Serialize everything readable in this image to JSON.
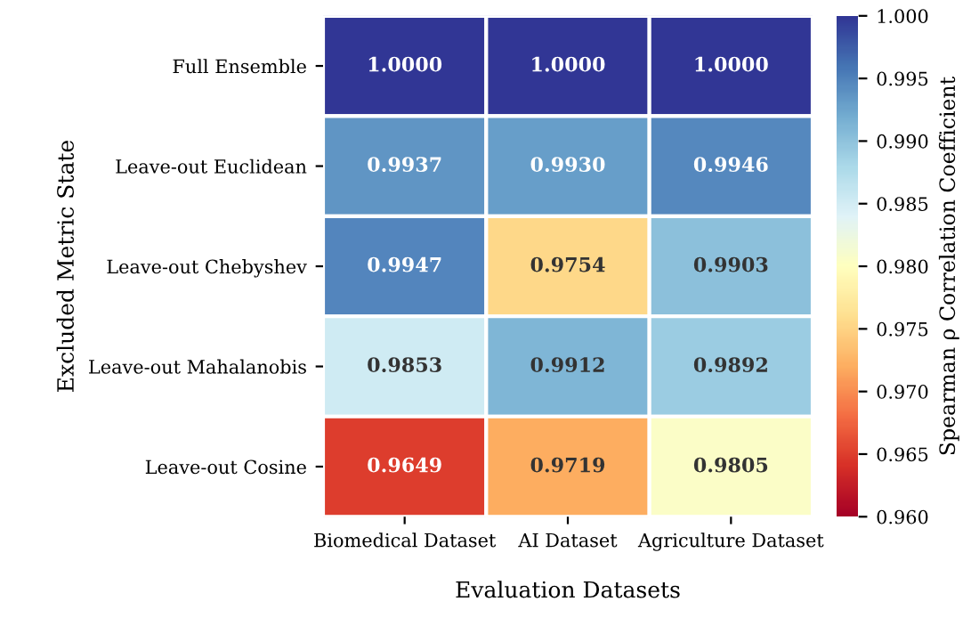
{
  "chart_data": {
    "type": "heatmap",
    "xlabel": "Evaluation Datasets",
    "ylabel": "Excluded Metric State",
    "clabel": "Spearman ρ Correlation Coefficient",
    "categories": [
      "Biomedical Dataset",
      "AI Dataset",
      "Agriculture Dataset"
    ],
    "y_categories": [
      "Full Ensemble",
      "Leave-out Euclidean",
      "Leave-out Chebyshev",
      "Leave-out Mahalanobis",
      "Leave-out Cosine"
    ],
    "cells": [
      [
        1.0,
        1.0,
        1.0
      ],
      [
        0.9937,
        0.993,
        0.9946
      ],
      [
        0.9947,
        0.9754,
        0.9903
      ],
      [
        0.9853,
        0.9912,
        0.9892
      ],
      [
        0.9649,
        0.9719,
        0.9805
      ]
    ],
    "cell_labels": [
      [
        "1.0000",
        "1.0000",
        "1.0000"
      ],
      [
        "0.9937",
        "0.9930",
        "0.9946"
      ],
      [
        "0.9947",
        "0.9754",
        "0.9903"
      ],
      [
        "0.9853",
        "0.9912",
        "0.9892"
      ],
      [
        "0.9649",
        "0.9719",
        "0.9805"
      ]
    ],
    "clim": [
      0.96,
      1.0
    ],
    "cticks": [
      {
        "value": 0.96,
        "label": "0.960"
      },
      {
        "value": 0.965,
        "label": "0.965"
      },
      {
        "value": 0.97,
        "label": "0.970"
      },
      {
        "value": 0.975,
        "label": "0.975"
      },
      {
        "value": 0.98,
        "label": "0.980"
      },
      {
        "value": 0.985,
        "label": "0.985"
      },
      {
        "value": 0.99,
        "label": "0.990"
      },
      {
        "value": 0.995,
        "label": "0.995"
      },
      {
        "value": 1.0,
        "label": "1.000"
      }
    ]
  }
}
